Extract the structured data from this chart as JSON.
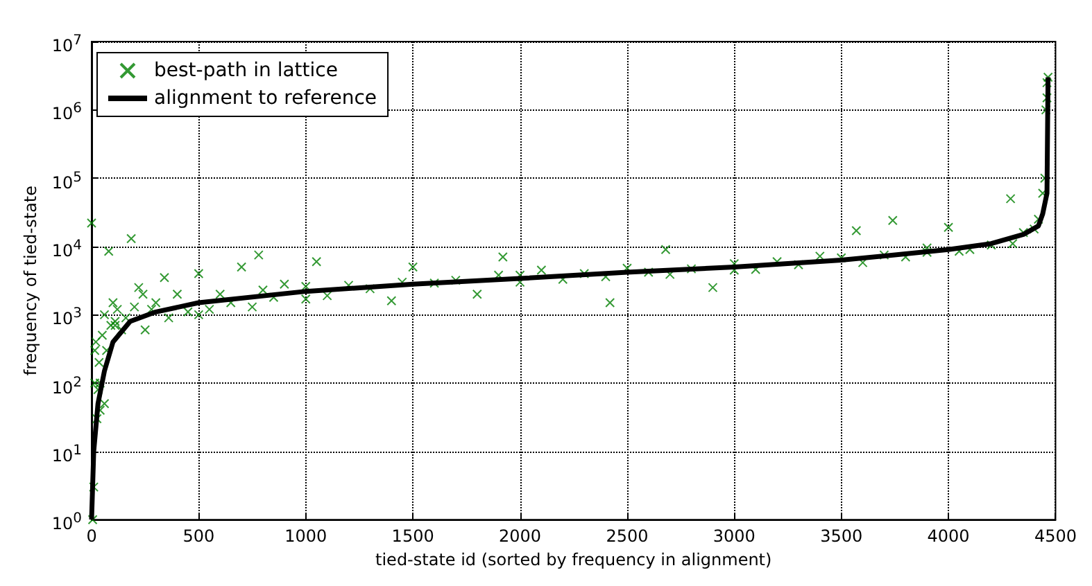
{
  "chart_data": {
    "type": "scatter",
    "xlabel": "tied-state id (sorted by frequency in alignment)",
    "ylabel": "frequency of tied-state",
    "log": "y",
    "grid": true,
    "legend": "top left",
    "xlim": [
      0,
      4500
    ],
    "xticks": [
      0,
      500,
      1000,
      1500,
      2000,
      2500,
      3000,
      3500,
      4000,
      4500
    ],
    "ylim": [
      1,
      10000000
    ],
    "yticks": [
      {
        "value": 1,
        "label": "10$^{0}$"
      },
      {
        "value": 10,
        "label": "10$^{1}$"
      },
      {
        "value": 100,
        "label": "10$^{2}$"
      },
      {
        "value": 1000,
        "label": "10$^{3}$"
      },
      {
        "value": 10000,
        "label": "10$^{4}$"
      },
      {
        "value": 100000,
        "label": "10$^{5}$"
      },
      {
        "value": 1000000,
        "label": "10$^{6}$"
      },
      {
        "value": 10000000,
        "label": "10$^{7}$"
      }
    ],
    "series": [
      {
        "name": "best-path in lattice",
        "marker": "cross",
        "color": "#008000",
        "x": [
          0,
          5,
          10,
          15,
          20,
          25,
          30,
          35,
          40,
          50,
          60,
          70,
          80,
          90,
          100,
          110,
          120,
          140,
          160,
          185,
          200,
          220,
          250,
          280,
          300,
          340,
          360,
          400,
          450,
          500,
          550,
          600,
          650,
          700,
          750,
          780,
          800,
          850,
          900,
          1000,
          1050,
          1100,
          1200,
          1300,
          1400,
          1450,
          1500,
          1600,
          1700,
          1800,
          1900,
          1920,
          2000,
          2100,
          2200,
          2300,
          2400,
          2420,
          2500,
          2600,
          2680,
          2700,
          2800,
          2900,
          3000,
          3100,
          3200,
          3300,
          3400,
          3500,
          3570,
          3600,
          3700,
          3740,
          3800,
          3900,
          4000,
          4050,
          4100,
          4200,
          4290,
          4300,
          4350,
          4400,
          4420,
          4440,
          4450,
          4455,
          4460,
          4460,
          4465,
          15,
          40,
          60,
          110,
          240,
          500,
          1000,
          2000,
          3000,
          3900
        ],
        "values": [
          22000,
          1,
          3,
          300,
          400,
          30,
          80,
          200,
          40,
          500,
          1000,
          300,
          8500,
          700,
          1500,
          800,
          1200,
          600,
          900,
          13000,
          1300,
          2500,
          600,
          1200,
          1500,
          3500,
          900,
          2000,
          1100,
          4000,
          1200,
          2000,
          1500,
          5000,
          1300,
          7500,
          2300,
          1800,
          2800,
          2600,
          6000,
          1900,
          2700,
          2400,
          1600,
          3000,
          5000,
          2900,
          3200,
          2000,
          3800,
          7000,
          3000,
          4500,
          3300,
          4000,
          3600,
          1500,
          4800,
          4200,
          9000,
          3900,
          4700,
          2500,
          5600,
          4600,
          6000,
          5400,
          7200,
          6800,
          17000,
          5800,
          7500,
          24000,
          7000,
          8200,
          19000,
          8500,
          9000,
          10500,
          50000,
          11000,
          16000,
          18000,
          25000,
          60000,
          100000,
          1000000,
          2500000,
          1500000,
          3000000,
          100,
          100,
          50,
          700,
          2000,
          1000,
          1700,
          3800,
          4500,
          9500
        ]
      },
      {
        "name": "alignment to reference",
        "type": "line",
        "marker": "none",
        "color": "#000000",
        "x": [
          0,
          10,
          30,
          60,
          100,
          180,
          300,
          500,
          1000,
          1500,
          2000,
          2500,
          3000,
          3500,
          4000,
          4200,
          4350,
          4420,
          4440,
          4460,
          4465
        ],
        "values": [
          1,
          10,
          50,
          150,
          400,
          800,
          1100,
          1500,
          2200,
          2800,
          3400,
          4200,
          5000,
          6300,
          9000,
          11000,
          15000,
          20000,
          30000,
          60000,
          3000000
        ]
      }
    ]
  }
}
